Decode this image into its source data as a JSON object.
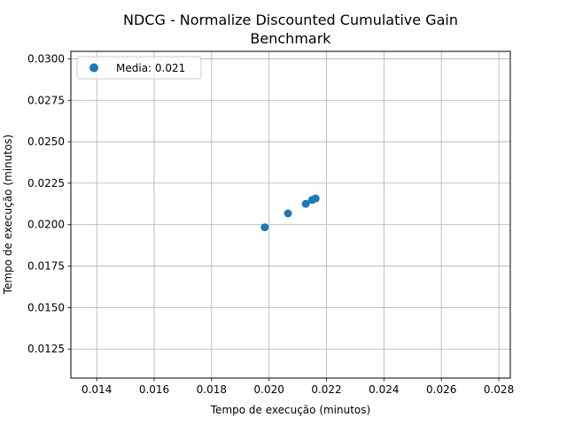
{
  "chart_data": {
    "type": "scatter",
    "title_line1": "NDCG - Normalize Discounted Cumulative Gain",
    "title_line2": "Benchmark",
    "xlabel": "Tempo de execução (minutos)",
    "ylabel": "Tempo de execução (minutos)",
    "xlim": [
      0.0131,
      0.0284
    ],
    "ylim": [
      0.01075,
      0.03045
    ],
    "xticks": [
      0.014,
      0.016,
      0.018,
      0.02,
      0.022,
      0.024,
      0.026,
      0.028
    ],
    "xtick_labels": [
      "0.014",
      "0.016",
      "0.018",
      "0.020",
      "0.022",
      "0.024",
      "0.026",
      "0.028"
    ],
    "yticks": [
      0.0125,
      0.015,
      0.0175,
      0.02,
      0.0225,
      0.025,
      0.0275,
      0.03
    ],
    "ytick_labels": [
      "0.0125",
      "0.0150",
      "0.0175",
      "0.0200",
      "0.0225",
      "0.0250",
      "0.0275",
      "0.0300"
    ],
    "grid": true,
    "legend_position": "top-left",
    "series": [
      {
        "name": "Media: 0.021",
        "color": "#1f77b4",
        "points": [
          {
            "x": 0.01985,
            "y": 0.01984
          },
          {
            "x": 0.02066,
            "y": 0.02068
          },
          {
            "x": 0.02128,
            "y": 0.02126
          },
          {
            "x": 0.0215,
            "y": 0.02149
          },
          {
            "x": 0.02162,
            "y": 0.02158
          }
        ]
      }
    ]
  }
}
